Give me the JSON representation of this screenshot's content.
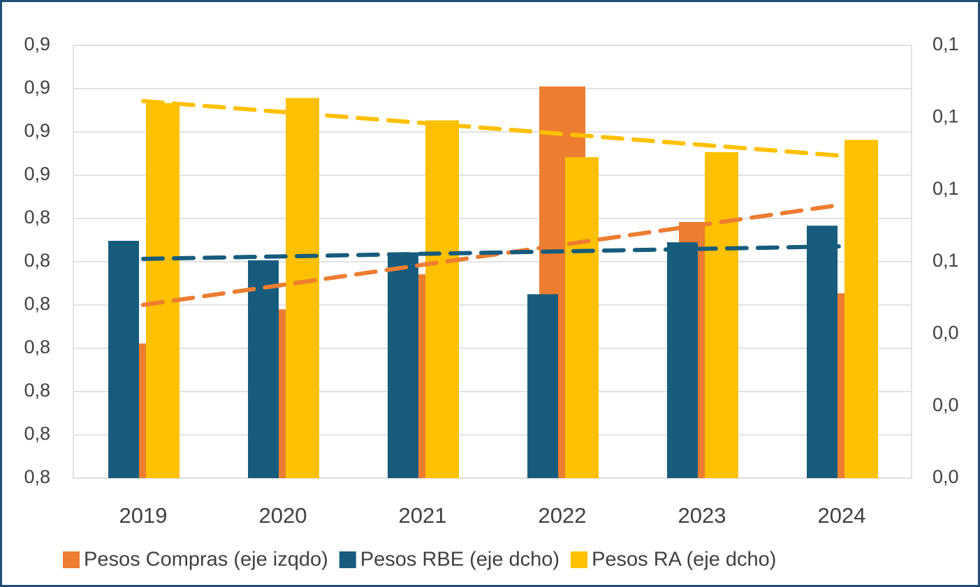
{
  "chart_data": {
    "type": "bar",
    "categories": [
      "2019",
      "2020",
      "2021",
      "2022",
      "2023",
      "2024"
    ],
    "series": [
      {
        "name": "Pesos Compras (eje izqdo)",
        "color": "#ed7d31",
        "axis": "y",
        "values": [
          0.8111,
          0.819,
          0.8271,
          0.8705,
          0.8392,
          0.8227
        ]
      },
      {
        "name": "Pesos RBE (eje dcho)",
        "color": "#175c7d",
        "axis": "y2",
        "values": [
          0.0529,
          0.0502,
          0.0513,
          0.0455,
          0.0527,
          0.055
        ]
      },
      {
        "name": "Pesos RA (eje dcho)",
        "color": "#ffc000",
        "axis": "y2",
        "values": [
          0.072,
          0.0727,
          0.0696,
          0.0645,
          0.0652,
          0.0669
        ]
      }
    ],
    "ylim": [
      0.78,
      0.88
    ],
    "yticks": [
      {
        "value": 0.78,
        "label": "0,8"
      },
      {
        "value": 0.79,
        "label": "0,8"
      },
      {
        "value": 0.8,
        "label": "0,8"
      },
      {
        "value": 0.81,
        "label": "0,8"
      },
      {
        "value": 0.82,
        "label": "0,8"
      },
      {
        "value": 0.83,
        "label": "0,8"
      },
      {
        "value": 0.84,
        "label": "0,8"
      },
      {
        "value": 0.85,
        "label": "0,9"
      },
      {
        "value": 0.86,
        "label": "0,9"
      },
      {
        "value": 0.87,
        "label": "0,9"
      },
      {
        "value": 0.88,
        "label": "0,9"
      }
    ],
    "y2lim": [
      0.02,
      0.08
    ],
    "y2ticks": [
      {
        "value": 0.02,
        "label": "0,0"
      },
      {
        "value": 0.03,
        "label": "0,0"
      },
      {
        "value": 0.04,
        "label": "0,0"
      },
      {
        "value": 0.05,
        "label": "0,1"
      },
      {
        "value": 0.06,
        "label": "0,1"
      },
      {
        "value": 0.07,
        "label": "0,1"
      },
      {
        "value": 0.08,
        "label": "0,1"
      }
    ],
    "grid": true,
    "trendline": "linear",
    "legend": "bottom"
  }
}
